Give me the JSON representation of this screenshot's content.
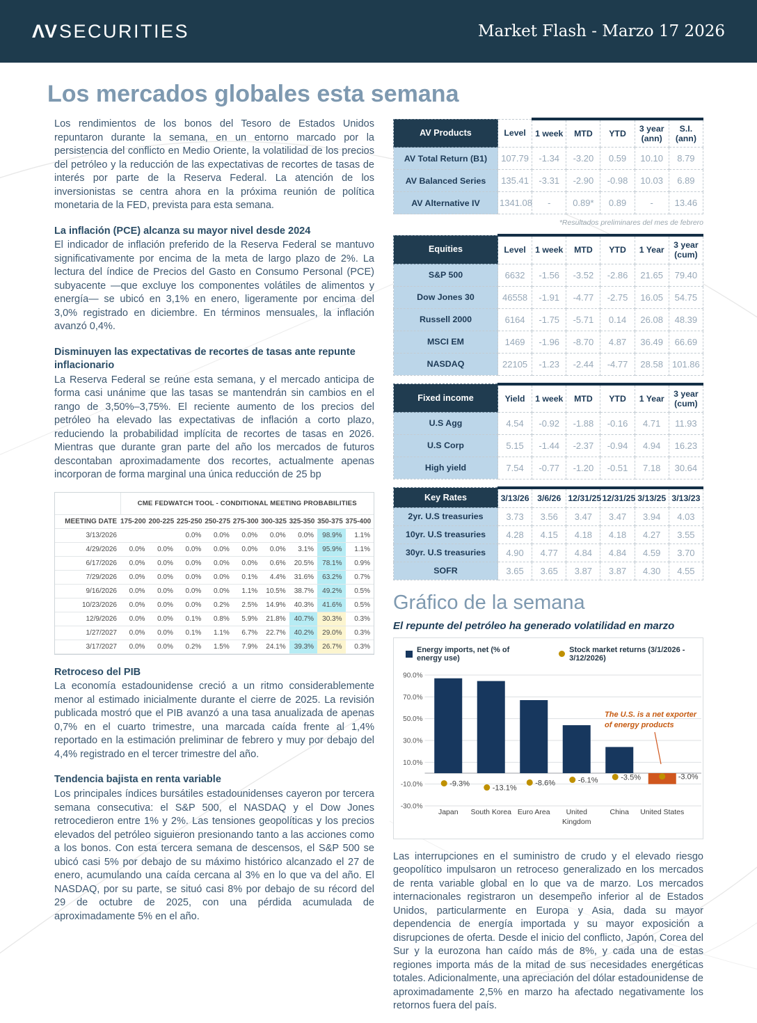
{
  "header": {
    "brand_av": "ΛV",
    "brand_rest": "SECURITIES",
    "issue": "Market Flash - Marzo 17 2026"
  },
  "page_title": "Los mercados globales esta semana",
  "left": {
    "p1": "Los rendimientos de los bonos del Tesoro de Estados Unidos repuntaron durante la semana, en un entorno marcado por la persistencia del conflicto en Medio Oriente, la volatilidad de los precios del petróleo y la reducción de las expectativas de recortes de tasas de interés por parte de la Reserva Federal. La atención de los inversionistas se centra ahora en la próxima reunión de política monetaria de la FED, prevista para esta semana.",
    "h1": "La inflación (PCE) alcanza su mayor nivel desde 2024",
    "p2": "El indicador de inflación preferido de la Reserva Federal se mantuvo significativamente por encima de la meta de largo plazo de 2%. La lectura del índice de Precios del Gasto en Consumo Personal (PCE) subyacente —que excluye los componentes volátiles de alimentos y energía— se ubicó en 3,1% en enero, ligeramente por encima del 3,0% registrado en diciembre. En términos mensuales, la inflación avanzó 0,4%.",
    "h2": "Disminuyen las expectativas de recortes de tasas ante repunte inflacionario",
    "p3": "La Reserva Federal se reúne esta semana, y el mercado anticipa de forma casi unánime que las tasas se mantendrán sin cambios en el rango de 3,50%–3,75%. El reciente aumento de los precios del petróleo ha elevado las expectativas de inflación a corto plazo, reduciendo la probabilidad implícita de recortes de tasas en 2026. Mientras que durante gran parte del año los mercados de futuros descontaban aproximadamente dos recortes, actualmente apenas incorporan de forma marginal una única reducción de 25 bp",
    "h3": "Retroceso del PIB",
    "p4": "La economía estadounidense creció a un ritmo considerablemente menor al estimado inicialmente durante el cierre de 2025. La revisión publicada mostró que el PIB avanzó a una tasa anualizada de apenas 0,7% en el cuarto trimestre, una marcada caída frente al 1,4% reportado en la estimación preliminar de febrero y muy por debajo del 4,4% registrado en el tercer trimestre del año.",
    "h4": "Tendencia bajista en renta variable",
    "p5": "Los principales índices bursátiles estadounidenses cayeron por tercera semana consecutiva: el S&P 500, el NASDAQ y el Dow Jones retrocedieron entre 1% y 2%. Las tensiones geopolíticas y los precios elevados del petróleo siguieron presionando tanto a las acciones como a los bonos. Con esta tercera semana de descensos, el S&P 500 se ubicó casi 5% por debajo de su máximo histórico alcanzado el 27 de enero, acumulando una caída cercana al 3% en lo que va del año. El NASDAQ, por su parte, se situó casi 8% por debajo de su récord del 29 de octubre de 2025, con una pérdida acumulada de aproximadamente 5% en el año."
  },
  "cme": {
    "title": "CME FEDWATCH TOOL - CONDITIONAL MEETING PROBABILITIES",
    "date_header": "MEETING DATE",
    "buckets": [
      "175-200",
      "200-225",
      "225-250",
      "250-275",
      "275-300",
      "300-325",
      "325-350",
      "350-375",
      "375-400"
    ],
    "rows": [
      {
        "date": "3/13/2026",
        "values": [
          "",
          "",
          "0.0%",
          "0.0%",
          "0.0%",
          "0.0%",
          "0.0%",
          "98.9%",
          "1.1%"
        ],
        "cyan": 7,
        "yellow": null
      },
      {
        "date": "4/29/2026",
        "values": [
          "0.0%",
          "0.0%",
          "0.0%",
          "0.0%",
          "0.0%",
          "0.0%",
          "3.1%",
          "95.9%",
          "1.1%"
        ],
        "cyan": 7,
        "yellow": null
      },
      {
        "date": "6/17/2026",
        "values": [
          "0.0%",
          "0.0%",
          "0.0%",
          "0.0%",
          "0.0%",
          "0.6%",
          "20.5%",
          "78.1%",
          "0.9%"
        ],
        "cyan": 7,
        "yellow": null
      },
      {
        "date": "7/29/2026",
        "values": [
          "0.0%",
          "0.0%",
          "0.0%",
          "0.0%",
          "0.1%",
          "4.4%",
          "31.6%",
          "63.2%",
          "0.7%"
        ],
        "cyan": 7,
        "yellow": null
      },
      {
        "date": "9/16/2026",
        "values": [
          "0.0%",
          "0.0%",
          "0.0%",
          "0.0%",
          "1.1%",
          "10.5%",
          "38.7%",
          "49.2%",
          "0.5%"
        ],
        "cyan": 7,
        "yellow": null
      },
      {
        "date": "10/23/2026",
        "values": [
          "0.0%",
          "0.0%",
          "0.0%",
          "0.2%",
          "2.5%",
          "14.9%",
          "40.3%",
          "41.6%",
          "0.5%"
        ],
        "cyan": 7,
        "yellow": null
      },
      {
        "date": "12/9/2026",
        "values": [
          "0.0%",
          "0.0%",
          "0.1%",
          "0.8%",
          "5.9%",
          "21.8%",
          "40.7%",
          "30.3%",
          "0.3%"
        ],
        "cyan": 6,
        "yellow": 7
      },
      {
        "date": "1/27/2027",
        "values": [
          "0.0%",
          "0.0%",
          "0.1%",
          "1.1%",
          "6.7%",
          "22.7%",
          "40.2%",
          "29.0%",
          "0.3%"
        ],
        "cyan": 6,
        "yellow": 7
      },
      {
        "date": "3/17/2027",
        "values": [
          "0.0%",
          "0.0%",
          "0.2%",
          "1.5%",
          "7.9%",
          "24.1%",
          "39.3%",
          "26.7%",
          "0.3%"
        ],
        "cyan": 6,
        "yellow": 7
      }
    ]
  },
  "tables": {
    "av": {
      "label": "AV Products",
      "band_start": 1,
      "columns": [
        "Level",
        "1 week",
        "MTD",
        "YTD",
        "3 year (ann)",
        "S.I. (ann)"
      ],
      "rows": [
        {
          "name": "AV Total Return (B1)",
          "values": [
            "107.79",
            "-1.34",
            "-3.20",
            "0.59",
            "10.10",
            "8.79"
          ]
        },
        {
          "name": "AV Balanced Series",
          "values": [
            "135.41",
            "-3.31",
            "-2.90",
            "-0.98",
            "10.03",
            "6.89"
          ]
        },
        {
          "name": "AV Alternative IV",
          "values": [
            "1341.08",
            "-",
            "0.89*",
            "0.89",
            "-",
            "13.46"
          ]
        }
      ],
      "footnote": "*Resultados preliminares del mes de febrero"
    },
    "equities": {
      "label": "Equities",
      "band_start": 0,
      "columns": [
        "Level",
        "1 week",
        "MTD",
        "YTD",
        "1 Year",
        "3 year (cum)"
      ],
      "rows": [
        {
          "name": "S&P 500",
          "values": [
            "6632",
            "-1.56",
            "-3.52",
            "-2.86",
            "21.65",
            "79.40"
          ]
        },
        {
          "name": "Dow Jones 30",
          "values": [
            "46558",
            "-1.91",
            "-4.77",
            "-2.75",
            "16.05",
            "54.75"
          ]
        },
        {
          "name": "Russell 2000",
          "values": [
            "6164",
            "-1.75",
            "-5.71",
            "0.14",
            "26.08",
            "48.39"
          ]
        },
        {
          "name": "MSCI EM",
          "values": [
            "1469",
            "-1.96",
            "-8.70",
            "4.87",
            "36.49",
            "66.69"
          ]
        },
        {
          "name": "NASDAQ",
          "values": [
            "22105",
            "-1.23",
            "-2.44",
            "-4.77",
            "28.58",
            "101.86"
          ]
        }
      ]
    },
    "fixed": {
      "label": "Fixed income",
      "band_start": 0,
      "columns": [
        "Yield",
        "1 week",
        "MTD",
        "YTD",
        "1 Year",
        "3 year (cum)"
      ],
      "rows": [
        {
          "name": "U.S Agg",
          "values": [
            "4.54",
            "-0.92",
            "-1.88",
            "-0.16",
            "4.71",
            "11.93"
          ]
        },
        {
          "name": "U.S Corp",
          "values": [
            "5.15",
            "-1.44",
            "-2.37",
            "-0.94",
            "4.94",
            "16.23"
          ]
        },
        {
          "name": "High yield",
          "values": [
            "7.54",
            "-0.77",
            "-1.20",
            "-0.51",
            "7.18",
            "30.64"
          ]
        }
      ]
    },
    "rates": {
      "label": "Key Rates",
      "band_start": 0,
      "columns": [
        "3/13/26",
        "3/6/26",
        "12/31/25",
        "12/31/25",
        "3/13/25",
        "3/13/23"
      ],
      "rows": [
        {
          "name": "2yr. U.S treasuries",
          "values": [
            "3.73",
            "3.56",
            "3.47",
            "3.47",
            "3.94",
            "4.03"
          ]
        },
        {
          "name": "10yr. U.S treasuries",
          "values": [
            "4.28",
            "4.15",
            "4.18",
            "4.18",
            "4.27",
            "3.55"
          ]
        },
        {
          "name": "30yr. U.S treasuries",
          "values": [
            "4.90",
            "4.77",
            "4.84",
            "4.84",
            "4.59",
            "3.70"
          ]
        },
        {
          "name": "SOFR",
          "values": [
            "3.65",
            "3.65",
            "3.87",
            "3.87",
            "4.30",
            "4.55"
          ]
        }
      ]
    }
  },
  "chart_section": {
    "title": "Gráfico de la semana"
  },
  "chart_data": {
    "type": "bar",
    "title": "El repunte del petróleo ha generado volatilidad en marzo",
    "categories": [
      "Japan",
      "South Korea",
      "Euro Area",
      "United Kingdom",
      "China",
      "United States"
    ],
    "categories_multiline": [
      [
        "Japan"
      ],
      [
        "South Korea"
      ],
      [
        "Euro Area"
      ],
      [
        "United",
        "Kingdom"
      ],
      [
        "China"
      ],
      [
        "United States"
      ]
    ],
    "series": [
      {
        "name": "Energy imports, net (% of energy use)",
        "type": "bar",
        "values": [
          87,
          84.5,
          67,
          44,
          24,
          -10
        ],
        "color": "#17375e",
        "highlight_index": 5,
        "highlight_color": "#d0571e"
      },
      {
        "name": "Stock market returns (3/1/2026 - 3/12/2026)",
        "type": "scatter",
        "values": [
          -9.3,
          -13.1,
          -8.6,
          -6.1,
          -3.5,
          -3.0
        ],
        "labels": [
          "-9.3%",
          "-13.1%",
          "-8.6%",
          "-6.1%",
          "-3.5%",
          "-3.0%"
        ],
        "color": "#bf9000"
      }
    ],
    "ylim": [
      -30,
      90
    ],
    "yticks": [
      90,
      70,
      50,
      30,
      10,
      -10,
      -30
    ],
    "grid": true,
    "legend_position": "top",
    "annotation": {
      "lines": [
        "The U.S. is a net exporter",
        "of energy products"
      ],
      "color": "#c55a11"
    }
  },
  "right": {
    "p1": "Las interrupciones en el suministro de crudo y el elevado riesgo geopolítico impulsaron un retroceso generalizado en los mercados de renta variable global en lo que va de marzo. Los mercados internacionales registraron un desempeño inferior al de Estados Unidos, particularmente en Europa y Asia, dada su mayor dependencia de energía importada y su mayor exposición a disrupciones de oferta. Desde el inicio del conflicto, Japón, Corea del Sur y la eurozona han caído más de 8%, y cada una de estas regiones importa más de la mitad de sus necesidades energéticas totales. Adicionalmente, una apreciación del dólar estadounidense de aproximadamente 2,5% en marzo ha afectado negativamente los retornos fuera del país."
  }
}
